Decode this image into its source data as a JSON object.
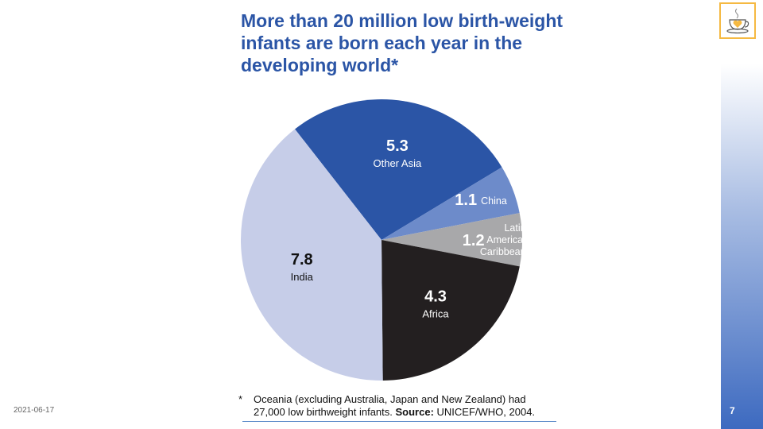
{
  "title": "More than 20 million low birth-weight infants are born each year in the developing world*",
  "date": "2021-06-17",
  "page_number": "7",
  "footnote": {
    "star": "*",
    "text": "Oceania (excluding Australia, Japan and New Zealand) had 27,000 low birthweight infants. ",
    "source_label": "Source:",
    "source": " UNICEF/WHO, 2004."
  },
  "logo_icon": "coffee-cup-heart-icon",
  "chart_data": {
    "type": "pie",
    "unit": "million",
    "slices": [
      {
        "label": "Other Asia",
        "value": 5.3,
        "display": "5.3",
        "color": "#2b55a6",
        "text": "#ffffff"
      },
      {
        "label": "China",
        "value": 1.1,
        "display": "1.1",
        "color": "#6d8bca",
        "text": "#ffffff"
      },
      {
        "label": "Latin America/ Caribbean",
        "value": 1.2,
        "display": "1.2",
        "color": "#a8a8aa",
        "text": "#ffffff"
      },
      {
        "label": "Africa",
        "value": 4.3,
        "display": "4.3",
        "color": "#231f20",
        "text": "#ffffff"
      },
      {
        "label": "India",
        "value": 7.8,
        "display": "7.8",
        "color": "#c6cde8",
        "text": "#111111"
      }
    ]
  }
}
